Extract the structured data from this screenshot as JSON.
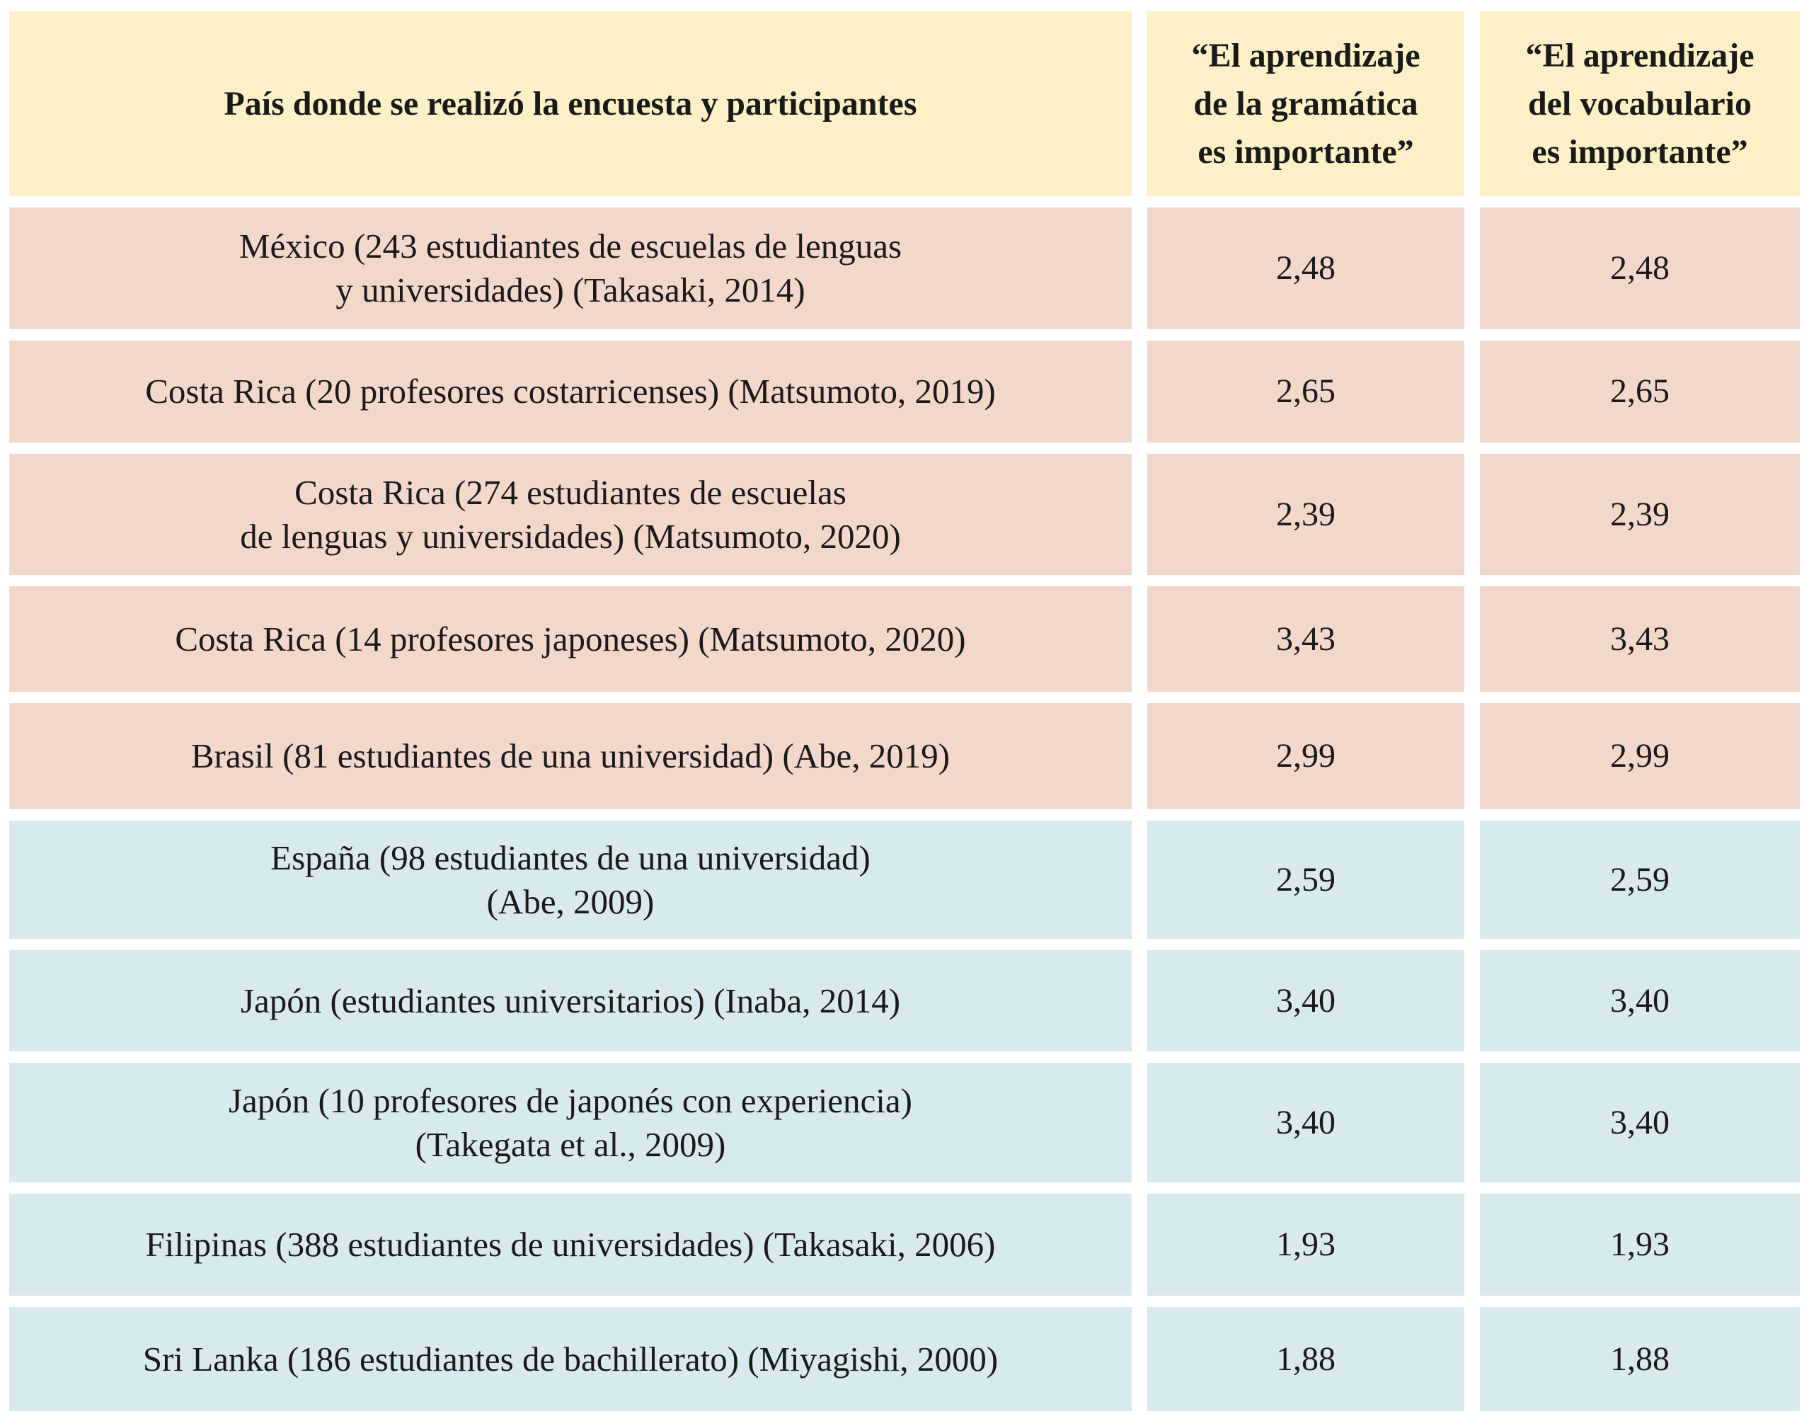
{
  "header": {
    "col1": "País donde se realizó la encuesta y participantes",
    "col2": [
      "“El aprendizaje",
      "de la gramática",
      "es importante”"
    ],
    "col3": [
      "“El aprendizaje",
      "del vocabulario",
      "es importante”"
    ]
  },
  "colors": {
    "header": "#fdf0c6",
    "group_a": "#f2d8ca",
    "group_b": "#d8e9f0"
  },
  "rows": [
    {
      "label": [
        "México (243 estudiantes de escuelas de lenguas",
        "y universidades) (Takasaki, 2014)"
      ],
      "grammar": "2,48",
      "vocabulary": "2,48",
      "group": "pink"
    },
    {
      "label": [
        "Costa Rica (20 profesores costarricenses) (Matsumoto, 2019)"
      ],
      "grammar": "2,65",
      "vocabulary": "2,65",
      "group": "pink"
    },
    {
      "label": [
        "Costa Rica (274 estudiantes de escuelas",
        "de lenguas y universidades) (Matsumoto, 2020)"
      ],
      "grammar": "2,39",
      "vocabulary": "2,39",
      "group": "pink"
    },
    {
      "label": [
        "Costa Rica (14 profesores japoneses) (Matsumoto, 2020)"
      ],
      "grammar": "3,43",
      "vocabulary": "3,43",
      "group": "pink"
    },
    {
      "label": [
        "Brasil (81 estudiantes de una universidad) (Abe, 2019)"
      ],
      "grammar": "2,99",
      "vocabulary": "2,99",
      "group": "pink"
    },
    {
      "label": [
        "España (98 estudiantes de una universidad)",
        "(Abe, 2009)"
      ],
      "grammar": "2,59",
      "vocabulary": "2,59",
      "group": "blue"
    },
    {
      "label": [
        "Japón (estudiantes universitarios) (Inaba, 2014)"
      ],
      "grammar": "3,40",
      "vocabulary": "3,40",
      "group": "blue"
    },
    {
      "label": [
        "Japón (10 profesores de japonés con experiencia)",
        "(Takegata et al., 2009)"
      ],
      "grammar": "3,40",
      "vocabulary": "3,40",
      "group": "blue"
    },
    {
      "label": [
        "Filipinas (388 estudiantes de universidades) (Takasaki, 2006)"
      ],
      "grammar": "1,93",
      "vocabulary": "1,93",
      "group": "blue"
    },
    {
      "label": [
        "Sri Lanka (186 estudiantes de bachillerato) (Miyagishi, 2000)"
      ],
      "grammar": "1,88",
      "vocabulary": "1,88",
      "group": "blue"
    }
  ]
}
